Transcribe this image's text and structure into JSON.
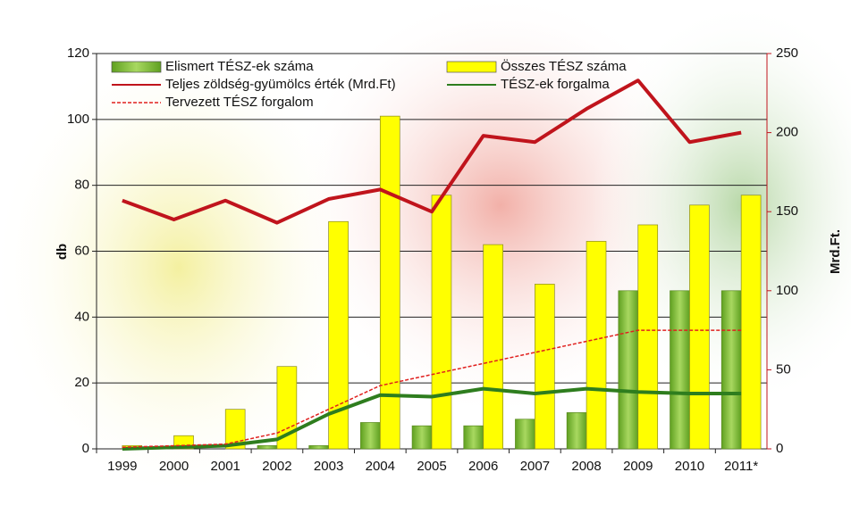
{
  "chart_data": {
    "type": "combo",
    "categories": [
      "1999",
      "2000",
      "2001",
      "2002",
      "2003",
      "2004",
      "2005",
      "2006",
      "2007",
      "2008",
      "2009",
      "2010",
      "2011*"
    ],
    "ylabel": "db",
    "y2label": "Mrd.Ft.",
    "ylim": [
      0,
      120
    ],
    "yticks": [
      0,
      20,
      40,
      60,
      80,
      100,
      120
    ],
    "y2lim": [
      0,
      250
    ],
    "y2ticks": [
      0,
      50,
      100,
      150,
      200,
      250
    ],
    "grid": true,
    "series": [
      {
        "name": "Elismert TÉSZ-ek száma",
        "type": "bar",
        "color": "#8cc63e",
        "values": [
          0,
          0,
          0,
          1,
          1,
          8,
          7,
          7,
          9,
          11,
          48,
          48,
          48
        ]
      },
      {
        "name": "Összes TÉSZ száma",
        "type": "bar",
        "color": "#ffff00",
        "values": [
          1,
          4,
          12,
          25,
          69,
          101,
          77,
          62,
          50,
          63,
          68,
          74,
          77
        ]
      },
      {
        "name": "Teljes zöldség-gyümölcs érték (Mrd.Ft)",
        "type": "line",
        "axis": "y2",
        "color": "#c0141c",
        "values": [
          157,
          145,
          157,
          143,
          158,
          164,
          150,
          198,
          194,
          215,
          233,
          194,
          200
        ]
      },
      {
        "name": "TÉSZ-ek forgalma",
        "type": "line",
        "axis": "y2",
        "color": "#2e7d1e",
        "values": [
          0,
          1,
          2,
          6,
          22,
          34,
          33,
          38,
          35,
          38,
          36,
          35,
          35
        ]
      },
      {
        "name": "Tervezett TÉSZ forgalom",
        "type": "line",
        "axis": "y2",
        "color": "#e0201e",
        "dashed": true,
        "values": [
          1,
          2,
          3,
          10,
          25,
          40,
          47,
          54,
          61,
          68,
          75,
          75,
          75
        ]
      }
    ]
  }
}
